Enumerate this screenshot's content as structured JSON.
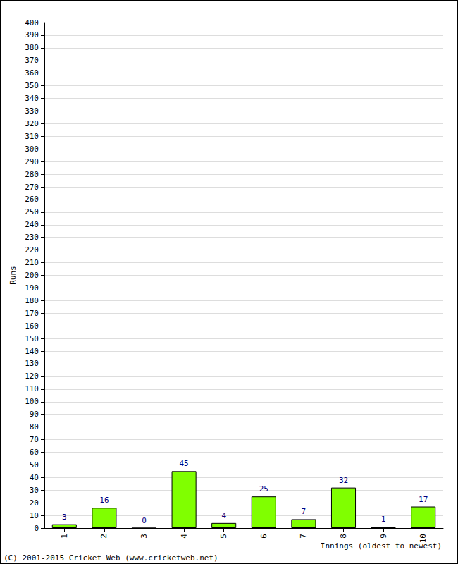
{
  "chart_data": {
    "type": "bar",
    "categories": [
      "1",
      "2",
      "3",
      "4",
      "5",
      "6",
      "7",
      "8",
      "9",
      "10"
    ],
    "values": [
      3,
      16,
      0,
      45,
      4,
      25,
      7,
      32,
      1,
      17
    ],
    "color": "#80ff00",
    "xlabel": "Innings (oldest to newest)",
    "ylabel": "Runs",
    "annotations": [
      "(C) 2001-2015 Cricket Web (www.cricketweb.net)"
    ],
    "ylim": [
      0,
      400
    ],
    "yticks": [
      0,
      10,
      20,
      30,
      40,
      50,
      60,
      70,
      80,
      90,
      100,
      110,
      120,
      130,
      140,
      150,
      160,
      170,
      180,
      190,
      200,
      210,
      220,
      230,
      240,
      250,
      260,
      270,
      280,
      290,
      300,
      310,
      320,
      330,
      340,
      350,
      360,
      370,
      380,
      390,
      400
    ],
    "grid": true,
    "data_labels": true
  }
}
